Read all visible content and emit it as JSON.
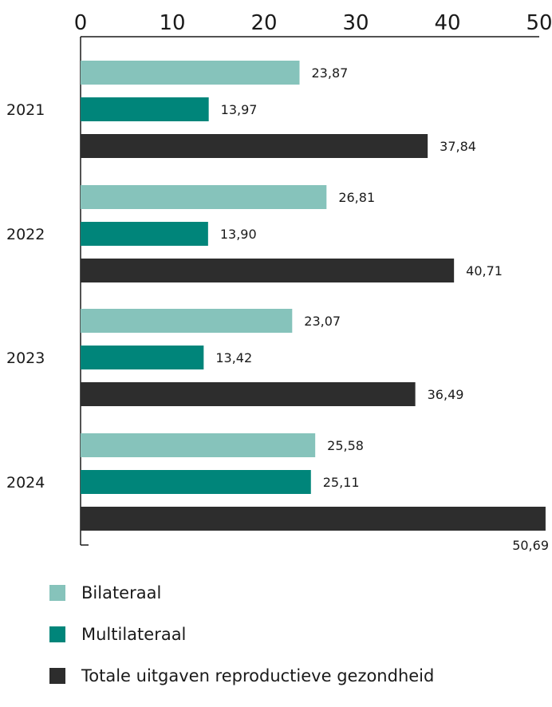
{
  "chart_data": {
    "type": "bar",
    "orientation": "horizontal",
    "title": "",
    "xlabel": "",
    "ylabel": "",
    "xlim": [
      0,
      50
    ],
    "x_ticks": [
      "0",
      "10",
      "20",
      "30",
      "40",
      "50"
    ],
    "x_axis_position": "top",
    "grid": false,
    "legend_position": "bottom-left",
    "categories": [
      "2021",
      "2022",
      "2023",
      "2024"
    ],
    "series": [
      {
        "name": "Bilateraal",
        "color": "#86c3bb",
        "values": [
          23.87,
          26.81,
          23.07,
          25.58
        ],
        "labels": [
          "23,87",
          "26,81",
          "23,07",
          "25,58"
        ]
      },
      {
        "name": "Multilateraal",
        "color": "#00857a",
        "values": [
          13.97,
          13.9,
          13.42,
          25.11
        ],
        "labels": [
          "13,97",
          "13,90",
          "13,42",
          "25,11"
        ]
      },
      {
        "name": "Totale uitgaven reproductieve gezondheid",
        "color": "#2d2d2d",
        "values": [
          37.84,
          40.71,
          36.49,
          50.69
        ],
        "labels": [
          "37,84",
          "40,71",
          "36,49",
          "50,69"
        ]
      }
    ]
  }
}
